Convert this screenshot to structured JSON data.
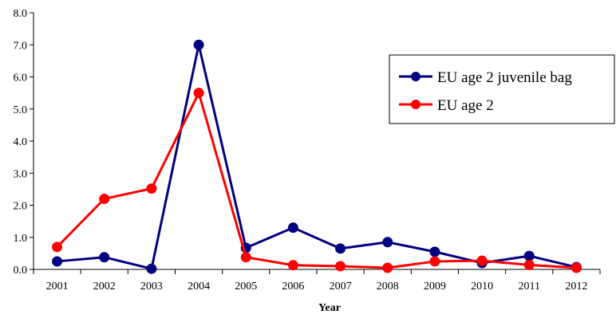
{
  "chart_data": {
    "type": "line",
    "title": "",
    "xlabel": "Year",
    "ylabel": "",
    "categories": [
      "2001",
      "2002",
      "2003",
      "2004",
      "2005",
      "2006",
      "2007",
      "2008",
      "2009",
      "2010",
      "2011",
      "2012"
    ],
    "ylim": [
      0,
      8
    ],
    "yticks": [
      "0.0",
      "1.0",
      "2.0",
      "3.0",
      "4.0",
      "5.0",
      "6.0",
      "7.0",
      "8.0"
    ],
    "grid": false,
    "legend_position": "right",
    "series": [
      {
        "name": "EU age 2 juvenile bag",
        "color": "#000080",
        "values": [
          0.25,
          0.38,
          0.02,
          7.0,
          0.67,
          1.3,
          0.65,
          0.85,
          0.55,
          0.2,
          0.42,
          0.07
        ]
      },
      {
        "name": "EU age 2",
        "color": "#ff0000",
        "values": [
          0.7,
          2.2,
          2.52,
          5.5,
          0.38,
          0.13,
          0.1,
          0.05,
          0.25,
          0.27,
          0.14,
          0.05
        ]
      }
    ]
  }
}
